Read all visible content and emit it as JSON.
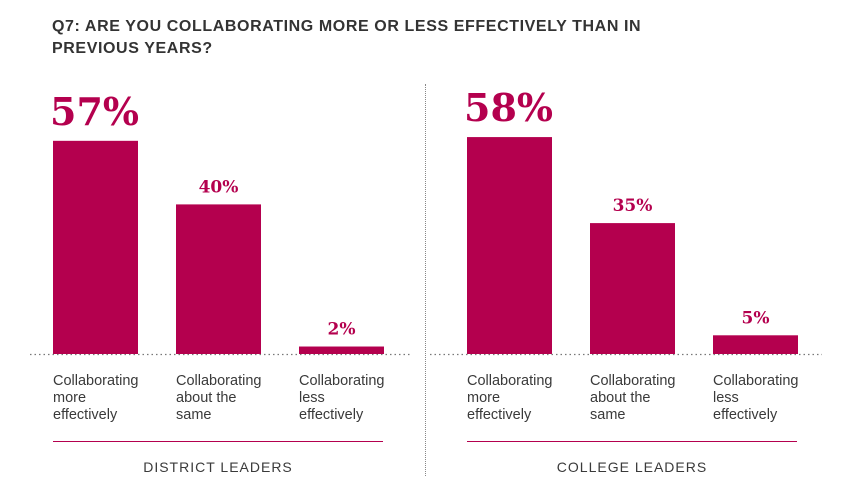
{
  "title": {
    "line1": "Q7: ARE YOU COLLABORATING MORE OR LESS EFFECTIVELY THAN IN",
    "line2": "PREVIOUS YEARS?"
  },
  "colors": {
    "bar": "#b4004e",
    "value_text": "#b4004e",
    "text": "#3a3a3a"
  },
  "chart_data": [
    {
      "type": "bar",
      "group": "DISTRICT LEADERS",
      "categories": [
        [
          "Collaborating",
          "more",
          "effectively"
        ],
        [
          "Collaborating",
          "about the",
          "same"
        ],
        [
          "Collaborating",
          "less",
          "effectively"
        ]
      ],
      "values": [
        57,
        40,
        2
      ],
      "value_labels": [
        "57%",
        "40%",
        "2%"
      ]
    },
    {
      "type": "bar",
      "group": "COLLEGE LEADERS",
      "categories": [
        [
          "Collaborating",
          "more",
          "effectively"
        ],
        [
          "Collaborating",
          "about the",
          "same"
        ],
        [
          "Collaborating",
          "less",
          "effectively"
        ]
      ],
      "values": [
        58,
        35,
        5
      ],
      "value_labels": [
        "58%",
        "35%",
        "5%"
      ]
    }
  ]
}
